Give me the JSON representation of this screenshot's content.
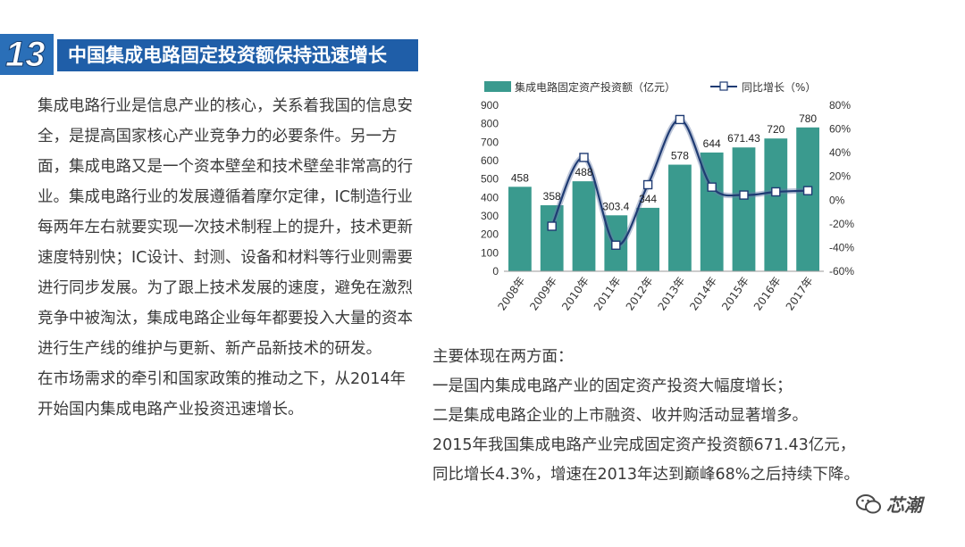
{
  "header": {
    "number": "13",
    "title": "中国集成电路固定投资额保持迅速增长"
  },
  "left_paragraphs": [
    "集成电路行业是信息产业的核心，关系着我国的信息安全，是提高国家核心产业竞争力的必要条件。另一方面，集成电路又是一个资本壁垒和技术壁垒非常高的行业。集成电路行业的发展遵循着摩尔定律，IC制造行业每两年左右就要实现一次技术制程上的提升，技术更新速度特别快；IC设计、封测、设备和材料等行业则需要进行同步发展。为了跟上技术发展的速度，避免在激烈竞争中被淘汰，集成电路企业每年都要投入大量的资本进行生产线的维护与更新、新产品新技术的研发。",
    "在市场需求的牵引和国家政策的推动之下，从2014年开始国内集成电路产业投资迅速增长。"
  ],
  "right_lines": [
    "主要体现在两方面：",
    "一是国内集成电路产业的固定资产投资大幅度增长；",
    "二是集成电路企业的上市融资、收并购活动显著增多。",
    "2015年我国集成电路产业完成固定资产投资额671.43亿元，",
    "同比增长4.3%，增速在2013年达到巅峰68%之后持续下降。"
  ],
  "watermark": {
    "label": "芯潮",
    "icon": "wechat-icon"
  },
  "colors": {
    "bar": "#3a9a8e",
    "line": "#1f3b73",
    "title_bg": "#1f5ea8",
    "number_bg": "#2a6fb8"
  },
  "chart_data": {
    "type": "bar",
    "categories": [
      "2008年",
      "2009年",
      "2010年",
      "2011年",
      "2012年",
      "2013年",
      "2014年",
      "2015年",
      "2016年",
      "2017年"
    ],
    "series": [
      {
        "name": "集成电路固定资产投资额（亿元）",
        "type": "bar",
        "axis": "left",
        "values": [
          458,
          358,
          488,
          303.4,
          344,
          578,
          644,
          671.43,
          720,
          780
        ],
        "labels": [
          "458",
          "358",
          "488",
          "303.4",
          "344",
          "578",
          "644",
          "671.43",
          "720",
          "780"
        ]
      },
      {
        "name": "同比增长（%）",
        "type": "line",
        "axis": "right",
        "values": [
          null,
          -22,
          36,
          -38,
          13,
          68,
          11,
          4.3,
          7,
          8
        ]
      }
    ],
    "left_axis": {
      "min": 0,
      "max": 900,
      "step": 100,
      "ticks": [
        "0",
        "100",
        "200",
        "300",
        "400",
        "500",
        "600",
        "700",
        "800",
        "900"
      ]
    },
    "right_axis": {
      "min": -60,
      "max": 80,
      "step": 20,
      "ticks": [
        "-60%",
        "-40%",
        "-20%",
        "0%",
        "20%",
        "40%",
        "60%",
        "80%"
      ]
    },
    "legend": "top",
    "grid": false
  }
}
